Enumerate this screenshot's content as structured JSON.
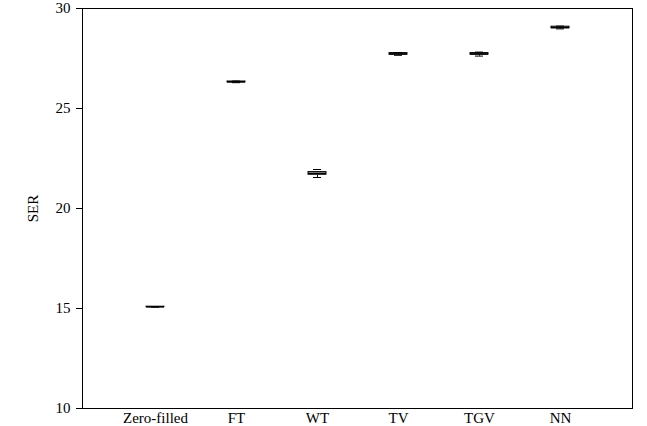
{
  "chart_data": {
    "type": "box",
    "y_label": "SER",
    "categories": [
      "Zero-filled",
      "FT",
      "WT",
      "TV",
      "TGV",
      "NN"
    ],
    "whisker_low": [
      15.07,
      26.29,
      21.55,
      27.66,
      27.62,
      28.98
    ],
    "q1": [
      15.08,
      26.31,
      21.69,
      27.69,
      27.69,
      29.01
    ],
    "median": [
      15.08,
      26.33,
      21.75,
      27.73,
      27.73,
      29.05
    ],
    "q3": [
      15.09,
      26.35,
      21.82,
      27.77,
      27.77,
      29.09
    ],
    "whisker_high": [
      15.09,
      26.37,
      21.95,
      27.8,
      27.82,
      29.12
    ],
    "color": "#b0b0b0",
    "ylim": [
      10,
      30
    ],
    "yticks": [
      10,
      15,
      20,
      25,
      30
    ],
    "grid": false
  }
}
